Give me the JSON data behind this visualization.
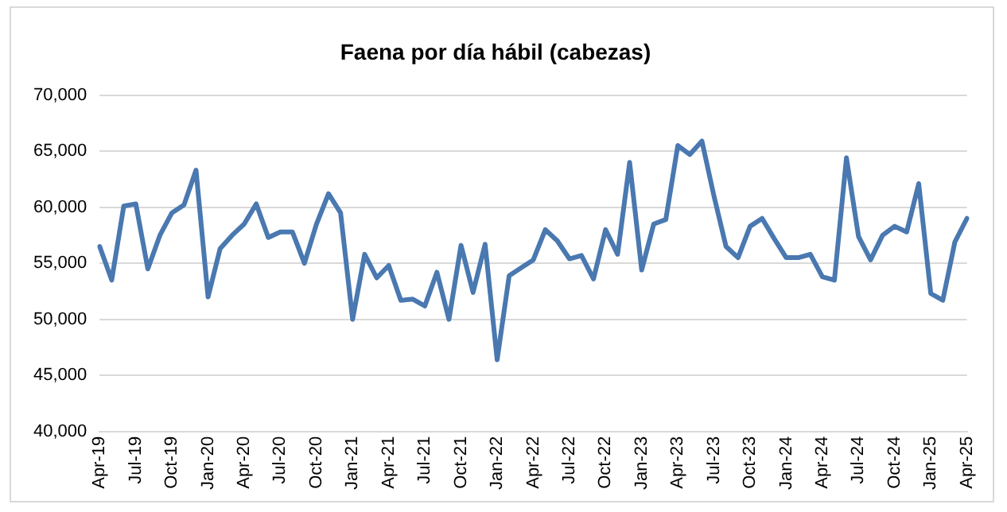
{
  "chart_data": {
    "type": "line",
    "title": "Faena por día hábil (cabezas)",
    "categories": [
      "Apr-19",
      null,
      null,
      "Jul-19",
      null,
      null,
      "Oct-19",
      null,
      null,
      "Jan-20",
      null,
      null,
      "Apr-20",
      null,
      null,
      "Jul-20",
      null,
      null,
      "Oct-20",
      null,
      null,
      "Jan-21",
      null,
      null,
      "Apr-21",
      null,
      null,
      "Jul-21",
      null,
      null,
      "Oct-21",
      null,
      null,
      "Jan-22",
      null,
      null,
      "Apr-22",
      null,
      null,
      "Jul-22",
      null,
      null,
      "Oct-22",
      null,
      null,
      "Jan-23",
      null,
      null,
      "Apr-23",
      null,
      null,
      "Jul-23",
      null,
      null,
      "Oct-23",
      null,
      null,
      "Jan-24",
      null,
      null,
      "Apr-24",
      null,
      null,
      "Jul-24",
      null,
      null,
      "Oct-24",
      null,
      null,
      "Jan-25",
      null,
      null,
      "Apr-25"
    ],
    "series": [
      {
        "color": "#4a78b0",
        "values": [
          56500,
          53500,
          60100,
          60300,
          54500,
          57500,
          59500,
          60200,
          63300,
          52000,
          56300,
          57500,
          58500,
          60300,
          57300,
          57800,
          57800,
          55000,
          58500,
          61200,
          59500,
          50000,
          55800,
          53700,
          54800,
          51700,
          51800,
          51200,
          54200,
          50000,
          56600,
          52400,
          56700,
          46400,
          53900,
          54600,
          55300,
          58000,
          57000,
          55400,
          55700,
          53600,
          58000,
          55800,
          64000,
          54400,
          58500,
          58900,
          65500,
          64700,
          65900,
          61000,
          56500,
          55500,
          58300,
          59000,
          57200,
          55500,
          55500,
          55800,
          53800,
          53500,
          64400,
          57400,
          55300,
          57500,
          58300,
          57800,
          62100,
          52300,
          51700,
          56900,
          59000
        ]
      }
    ],
    "ylim": [
      40000,
      70000
    ],
    "yticks": [
      {
        "value": 40000,
        "label": "40,000"
      },
      {
        "value": 45000,
        "label": "45,000"
      },
      {
        "value": 50000,
        "label": "50,000"
      },
      {
        "value": 55000,
        "label": "55,000"
      },
      {
        "value": 60000,
        "label": "60,000"
      },
      {
        "value": 65000,
        "label": "65,000"
      },
      {
        "value": 70000,
        "label": "70,000"
      }
    ],
    "grid": "y",
    "legend": false,
    "marker": "none",
    "line_style": "solid"
  }
}
